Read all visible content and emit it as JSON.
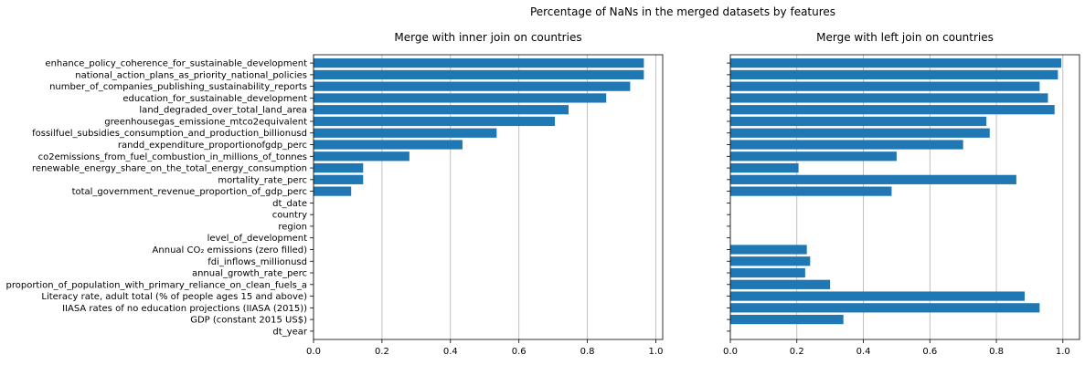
{
  "figure": {
    "title": "Percentage of NaNs in the merged datasets by features"
  },
  "chart_data": [
    {
      "type": "bar",
      "orientation": "horizontal",
      "title": "Merge with inner join on countries",
      "categories": [
        "enhance_policy_coherence_for_sustainable_development",
        "national_action_plans_as_priority_national_policies",
        "number_of_companies_publishing_sustainability_reports",
        "education_for_sustainable_development",
        "land_degraded_over_total_land_area",
        "greenhousegas_emissione_mtco2equivalent",
        "fossilfuel_subsidies_consumption_and_production_billionusd",
        "randd_expenditure_proportionofgdp_perc",
        "co2emissions_from_fuel_combustion_in_millions_of_tonnes",
        "renewable_energy_share_on_the_total_energy_consumption",
        "mortality_rate_perc",
        "total_government_revenue_proportion_of_gdp_perc",
        "dt_date",
        "country",
        "region",
        "level_of_development",
        "Annual CO₂ emissions (zero filled)",
        "fdi_inflows_millionusd",
        "annual_growth_rate_perc",
        "proportion_of_population_with_primary_reliance_on_clean_fuels_a",
        "Literacy rate, adult total (% of people ages 15 and above)",
        "IIASA rates of no education projections (IIASA (2015))",
        "GDP (constant 2015 US$)",
        "dt_year"
      ],
      "values": [
        0.965,
        0.965,
        0.925,
        0.855,
        0.745,
        0.705,
        0.535,
        0.435,
        0.28,
        0.145,
        0.145,
        0.11,
        0,
        0,
        0,
        0,
        0,
        0,
        0,
        0,
        0,
        0,
        0,
        0
      ],
      "xlim": [
        0,
        1.02
      ],
      "xticks": [
        "0.0",
        "0.2",
        "0.4",
        "0.6",
        "0.8",
        "1.0"
      ],
      "grid": "x",
      "bar_color": "#1f77b4"
    },
    {
      "type": "bar",
      "orientation": "horizontal",
      "title": "Merge with left join on countries",
      "categories_shared_with_left": true,
      "values": [
        0.995,
        0.985,
        0.93,
        0.955,
        0.975,
        0.77,
        0.78,
        0.7,
        0.5,
        0.205,
        0.86,
        0.485,
        0,
        0,
        0,
        0,
        0.23,
        0.24,
        0.225,
        0.3,
        0.885,
        0.93,
        0.34,
        0
      ],
      "xlim": [
        0,
        1.05
      ],
      "xticks": [
        "0.0",
        "0.2",
        "0.4",
        "0.6",
        "0.8",
        "1.0"
      ],
      "grid": "x",
      "bar_color": "#1f77b4"
    }
  ]
}
